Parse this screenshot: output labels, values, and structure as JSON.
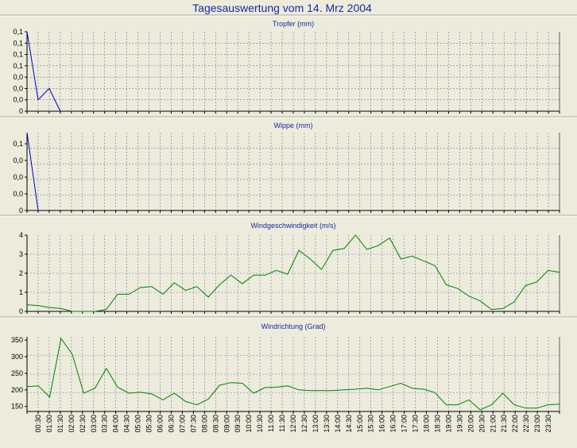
{
  "page_title": "Tagesauswertung vom 14. Mrz 2004",
  "colors": {
    "background": "#ecebdc",
    "plot_background": "#ecebdc",
    "title_text": "#1a2aa0",
    "blue_series": "#0000cc",
    "green_series": "#008000",
    "grid": "#7a7aa0",
    "axis": "#000000"
  },
  "x_tick_labels": [
    "00:30",
    "01:00",
    "01:30",
    "02:00",
    "02:30",
    "03:00",
    "03:30",
    "04:00",
    "04:30",
    "05:00",
    "05:30",
    "06:00",
    "06:30",
    "07:00",
    "07:30",
    "08:00",
    "08:30",
    "09:00",
    "09:30",
    "10:00",
    "10:30",
    "11:00",
    "11:30",
    "12:00",
    "12:30",
    "13:00",
    "13:30",
    "14:00",
    "14:30",
    "15:00",
    "15:30",
    "16:00",
    "16:30",
    "17:00",
    "17:30",
    "18:00",
    "18:30",
    "19:00",
    "19:30",
    "20:00",
    "20:30",
    "21:00",
    "21:30",
    "22:00",
    "22:30",
    "23:00",
    "23:30"
  ],
  "chart_data": [
    {
      "type": "line",
      "title": "Tropfer (mm)",
      "ylim": [
        0,
        0.14
      ],
      "y_ticks": [
        {
          "value": 0.0,
          "label": "0"
        },
        {
          "value": 0.02,
          "label": "0,0"
        },
        {
          "value": 0.04,
          "label": "0,0"
        },
        {
          "value": 0.06,
          "label": "0,0"
        },
        {
          "value": 0.08,
          "label": "0,1"
        },
        {
          "value": 0.1,
          "label": "0,1"
        },
        {
          "value": 0.12,
          "label": "0,1"
        },
        {
          "value": 0.14,
          "label": "0,1"
        }
      ],
      "color": "blue",
      "values": [
        0.14,
        0.02,
        0.04,
        0.0
      ]
    },
    {
      "type": "line",
      "title": "Wippe (mm)",
      "ylim": [
        0,
        0.14
      ],
      "y_ticks": [
        {
          "value": 0.0,
          "label": "0"
        },
        {
          "value": 0.03,
          "label": "0,0"
        },
        {
          "value": 0.06,
          "label": "0,0"
        },
        {
          "value": 0.09,
          "label": "0,0"
        },
        {
          "value": 0.12,
          "label": "0,1"
        }
      ],
      "color": "blue",
      "values": [
        0.14,
        0.0
      ]
    },
    {
      "type": "line",
      "title": "Windgeschwindigkeit (m/s)",
      "ylim": [
        0,
        4
      ],
      "y_ticks": [
        {
          "value": 0,
          "label": "0"
        },
        {
          "value": 1,
          "label": "1"
        },
        {
          "value": 2,
          "label": "2"
        },
        {
          "value": 3,
          "label": "3"
        },
        {
          "value": 4,
          "label": "4"
        }
      ],
      "color": "green",
      "values": [
        0.35,
        0.3,
        0.2,
        0.15,
        0.0,
        0.0,
        0.0,
        0.1,
        0.9,
        0.9,
        1.25,
        1.3,
        0.9,
        1.5,
        1.1,
        1.3,
        0.75,
        1.4,
        1.9,
        1.45,
        1.9,
        1.9,
        2.15,
        1.95,
        3.2,
        2.75,
        2.2,
        3.2,
        3.3,
        4.0,
        3.25,
        3.45,
        3.85,
        2.75,
        2.9,
        2.65,
        2.4,
        1.4,
        1.2,
        0.8,
        0.55,
        0.1,
        0.15,
        0.5,
        1.35,
        1.55,
        2.15,
        2.05
      ]
    },
    {
      "type": "line",
      "title": "Windrichtung (Grad)",
      "ylim": [
        135,
        360
      ],
      "y_ticks": [
        {
          "value": 150,
          "label": "150"
        },
        {
          "value": 200,
          "label": "200"
        },
        {
          "value": 250,
          "label": "250"
        },
        {
          "value": 300,
          "label": "300"
        },
        {
          "value": 350,
          "label": "350"
        }
      ],
      "color": "green",
      "values": [
        210,
        212,
        178,
        355,
        307,
        190,
        205,
        265,
        208,
        190,
        193,
        188,
        170,
        190,
        165,
        155,
        172,
        214,
        222,
        220,
        190,
        207,
        208,
        212,
        200,
        198,
        198,
        198,
        200,
        202,
        205,
        200,
        210,
        220,
        205,
        202,
        192,
        155,
        155,
        170,
        140,
        155,
        190,
        155,
        145,
        145,
        155,
        157
      ]
    }
  ]
}
